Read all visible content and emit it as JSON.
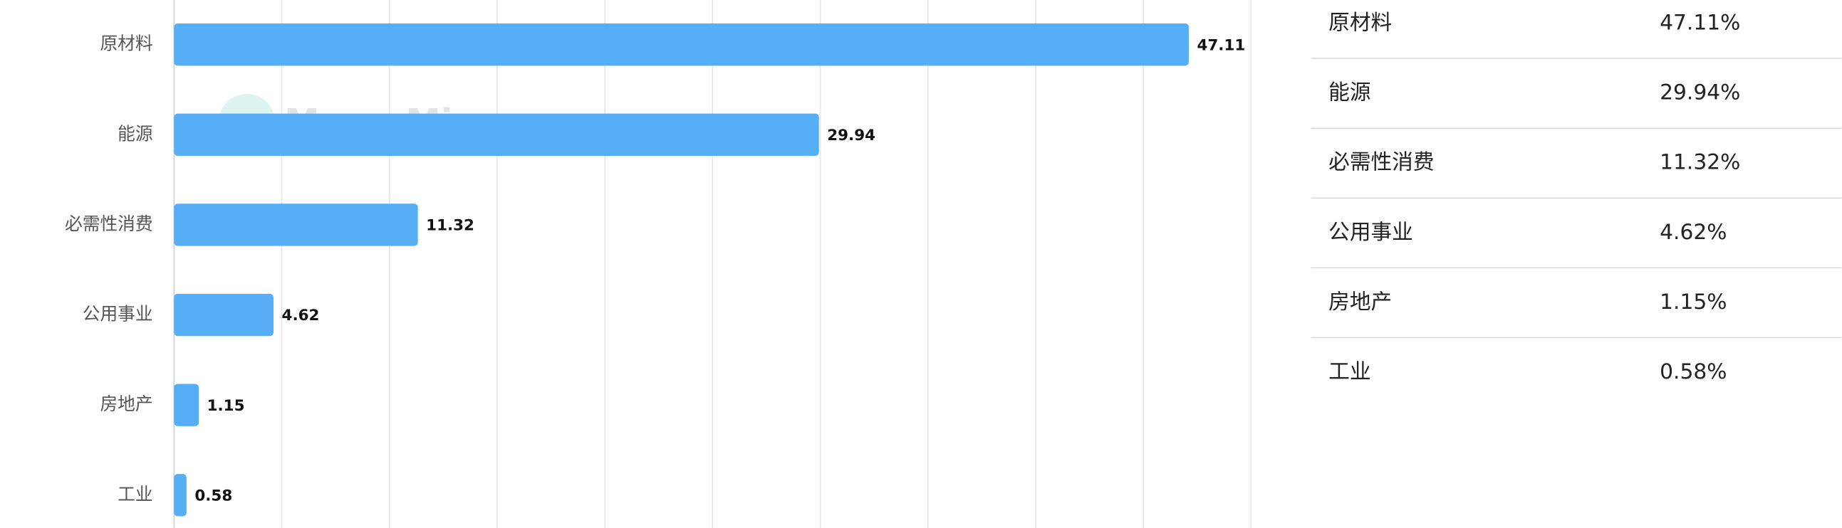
{
  "chart_data": {
    "type": "bar",
    "orientation": "horizontal",
    "categories": [
      "原材料",
      "能源",
      "必需性消费",
      "公用事业",
      "房地产",
      "工业"
    ],
    "values": [
      47.11,
      29.94,
      11.32,
      4.62,
      1.15,
      0.58
    ],
    "color": "#56aef6",
    "xlim": [
      0,
      50
    ],
    "xticks": [
      0,
      5,
      10,
      15,
      20,
      25,
      30,
      35,
      40,
      45,
      50
    ],
    "grid": true,
    "watermark": "MacroMicro"
  },
  "table": {
    "rows": [
      [
        "原材料",
        "47.11%"
      ],
      [
        "能源",
        "29.94%"
      ],
      [
        "必需性消费",
        "11.32%"
      ],
      [
        "公用事业",
        "4.62%"
      ],
      [
        "房地产",
        "1.15%"
      ],
      [
        "工业",
        "0.58%"
      ]
    ]
  }
}
